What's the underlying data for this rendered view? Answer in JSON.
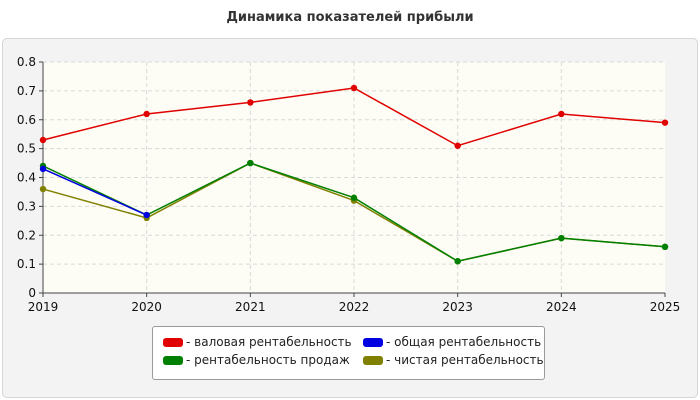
{
  "title": "Динамика показателей прибыли",
  "colors": {
    "background": "#ffffff",
    "panel": "#f3f3f3",
    "plot_area": "#fdfdf6"
  },
  "chart_data": {
    "type": "line",
    "title": "Динамика показателей прибыли",
    "xlabel": "",
    "ylabel": "",
    "x": [
      "2019",
      "2020",
      "2021",
      "2022",
      "2023",
      "2024",
      "2025"
    ],
    "ylim": [
      0,
      0.8
    ],
    "yticks": [
      "0",
      "0.1",
      "0.2",
      "0.3",
      "0.4",
      "0.5",
      "0.6",
      "0.7",
      "0.8"
    ],
    "grid": true,
    "legend_position": "bottom-center",
    "series": [
      {
        "name": "- валовая рентабельность",
        "color": "#e00000",
        "values": [
          0.53,
          0.62,
          0.66,
          0.71,
          0.51,
          0.62,
          0.59
        ]
      },
      {
        "name": "- общая рентабельность",
        "color": "#0000e0",
        "values": [
          0.43,
          0.27,
          null,
          null,
          null,
          null,
          null
        ]
      },
      {
        "name": "- рентабельность продаж",
        "color": "#008000",
        "values": [
          0.44,
          0.27,
          0.45,
          0.33,
          0.11,
          0.19,
          0.16
        ]
      },
      {
        "name": "- чистая рентабельность",
        "color": "#808000",
        "values": [
          0.36,
          0.26,
          0.45,
          0.32,
          0.11,
          0.19,
          0.16
        ]
      }
    ]
  }
}
